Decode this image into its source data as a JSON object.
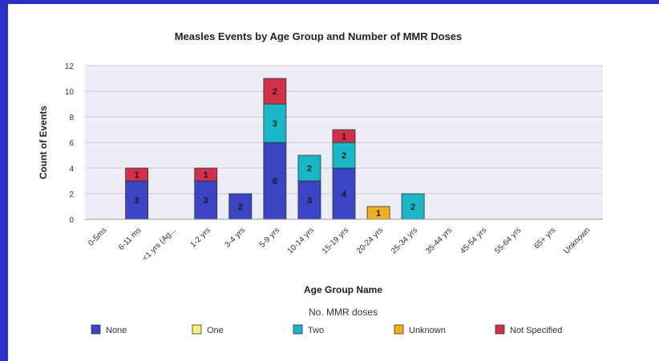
{
  "chart_data": {
    "type": "bar",
    "stacked": true,
    "title": "Measles Events by Age Group and Number of MMR Doses",
    "xlabel": "Age Group Name",
    "ylabel": "Count of Events",
    "ylim": [
      0,
      12
    ],
    "yticks": [
      0,
      2,
      4,
      6,
      8,
      10,
      12
    ],
    "grid": true,
    "legend_title": "No. MMR doses",
    "legend_position": "bottom",
    "categories": [
      "0-5ms",
      "6-11 ms",
      "<1 yrs (Ag...",
      "1-2 yrs",
      "3-4 yrs",
      "5-9 yrs",
      "10-14 yrs",
      "15-19 yrs",
      "20-24 yrs",
      "25-34 yrs",
      "35-44 yrs",
      "45-54 yrs",
      "55-64 yrs",
      "65+ yrs",
      "Unknown"
    ],
    "series": [
      {
        "name": "None",
        "color": "#3a44c4",
        "values": [
          0,
          3,
          0,
          3,
          2,
          6,
          3,
          4,
          0,
          0,
          0,
          0,
          0,
          0,
          0
        ]
      },
      {
        "name": "One",
        "color": "#f2ee7a",
        "values": [
          0,
          0,
          0,
          0,
          0,
          0,
          0,
          0,
          0,
          0,
          0,
          0,
          0,
          0,
          0
        ]
      },
      {
        "name": "Two",
        "color": "#19b8c8",
        "values": [
          0,
          0,
          0,
          0,
          0,
          3,
          2,
          2,
          0,
          2,
          0,
          0,
          0,
          0,
          0
        ]
      },
      {
        "name": "Unknown",
        "color": "#f0b020",
        "values": [
          0,
          0,
          0,
          0,
          0,
          0,
          0,
          0,
          1,
          0,
          0,
          0,
          0,
          0,
          0
        ]
      },
      {
        "name": "Not Specified",
        "color": "#d0304a",
        "values": [
          0,
          1,
          0,
          1,
          0,
          2,
          0,
          1,
          0,
          0,
          0,
          0,
          0,
          0,
          0
        ]
      }
    ]
  }
}
